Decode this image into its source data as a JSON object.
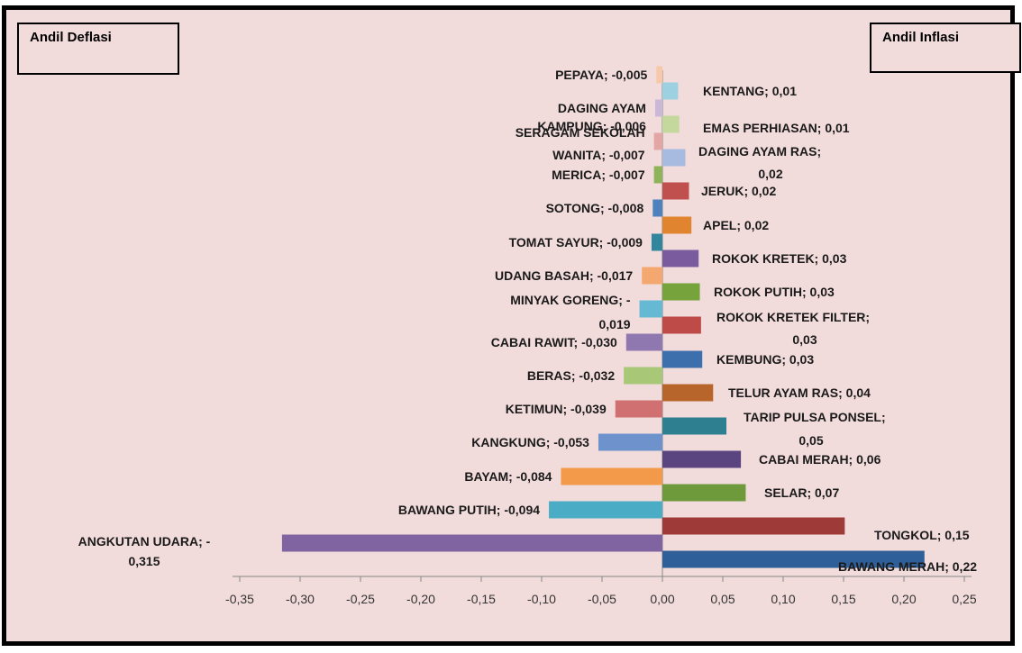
{
  "labels": {
    "deflasi_title": "Andil Deflasi",
    "inflasi_title": "Andil Inflasi"
  },
  "chart_data": {
    "type": "bar",
    "orientation": "horizontal",
    "xlim": [
      -0.35,
      0.25
    ],
    "xticks": [
      "-0,35",
      "-0,30",
      "-0,25",
      "-0,20",
      "-0,15",
      "-0,10",
      "-0,05",
      "0,00",
      "0,05",
      "0,10",
      "0,15",
      "0,20",
      "0,25"
    ],
    "xtick_values": [
      -0.35,
      -0.3,
      -0.25,
      -0.2,
      -0.15,
      -0.1,
      -0.05,
      0.0,
      0.05,
      0.1,
      0.15,
      0.2,
      0.25
    ],
    "deflasi": [
      {
        "label": [
          "PEPAYA; -0,005"
        ],
        "value": -0.005,
        "color": "#f8c9a8"
      },
      {
        "label": [
          "DAGING AYAM",
          "KAMPUNG; -0,006"
        ],
        "value": -0.006,
        "color": "#c9b8d8"
      },
      {
        "label": [
          "SERAGAM SEKOLAH",
          "WANITA; -0,007"
        ],
        "value": -0.007,
        "color": "#e3a6a4"
      },
      {
        "label": [
          "MERICA; -0,007"
        ],
        "value": -0.007,
        "color": "#8fb35a"
      },
      {
        "label": [
          "SOTONG; -0,008"
        ],
        "value": -0.008,
        "color": "#4f81bd"
      },
      {
        "label": [
          "TOMAT SAYUR; -0,009"
        ],
        "value": -0.009,
        "color": "#31859c"
      },
      {
        "label": [
          "UDANG BASAH; -0,017"
        ],
        "value": -0.017,
        "color": "#f4a870"
      },
      {
        "label": [
          "MINYAK GORENG; -",
          "0,019"
        ],
        "value": -0.019,
        "color": "#65b9d3"
      },
      {
        "label": [
          "CABAI RAWIT; -0,030"
        ],
        "value": -0.03,
        "color": "#8f78b0"
      },
      {
        "label": [
          "BERAS; -0,032"
        ],
        "value": -0.032,
        "color": "#a8c878"
      },
      {
        "label": [
          "KETIMUN; -0,039"
        ],
        "value": -0.039,
        "color": "#d07070"
      },
      {
        "label": [
          "KANGKUNG; -0,053"
        ],
        "value": -0.053,
        "color": "#6e93cc"
      },
      {
        "label": [
          "BAYAM; -0,084"
        ],
        "value": -0.084,
        "color": "#f39a4a"
      },
      {
        "label": [
          "BAWANG PUTIH; -0,094"
        ],
        "value": -0.094,
        "color": "#4bacc6"
      },
      {
        "label": [
          "ANGKUTAN UDARA; -",
          "0,315"
        ],
        "value": -0.315,
        "color": "#8064a2"
      }
    ],
    "inflasi": [
      {
        "label": [
          "KENTANG; 0,01"
        ],
        "value": 0.013,
        "color": "#9dd0e0"
      },
      {
        "label": [
          "EMAS PERHIASAN; 0,01"
        ],
        "value": 0.014,
        "color": "#c4d89e"
      },
      {
        "label": [
          "DAGING AYAM RAS;",
          "0,02"
        ],
        "value": 0.019,
        "color": "#a7badf"
      },
      {
        "label": [
          "JERUK; 0,02"
        ],
        "value": 0.022,
        "color": "#c0504d"
      },
      {
        "label": [
          "APEL; 0,02"
        ],
        "value": 0.024,
        "color": "#e0842f"
      },
      {
        "label": [
          "ROKOK KRETEK; 0,03"
        ],
        "value": 0.03,
        "color": "#7a5c9e"
      },
      {
        "label": [
          "ROKOK PUTIH; 0,03"
        ],
        "value": 0.031,
        "color": "#77a33c"
      },
      {
        "label": [
          "ROKOK KRETEK FILTER;",
          "0,03"
        ],
        "value": 0.032,
        "color": "#be4b48"
      },
      {
        "label": [
          "KEMBUNG; 0,03"
        ],
        "value": 0.033,
        "color": "#3d6fad"
      },
      {
        "label": [
          "TELUR AYAM RAS; 0,04"
        ],
        "value": 0.042,
        "color": "#b8652b"
      },
      {
        "label": [
          "TARIP PULSA PONSEL;",
          "0,05"
        ],
        "value": 0.053,
        "color": "#2e7f8f"
      },
      {
        "label": [
          "CABAI MERAH; 0,06"
        ],
        "value": 0.065,
        "color": "#5b4580"
      },
      {
        "label": [
          "SELAR; 0,07"
        ],
        "value": 0.069,
        "color": "#6f9a3b"
      },
      {
        "label": [
          "TONGKOL; 0,15"
        ],
        "value": 0.151,
        "color": "#9e3a38"
      },
      {
        "label": [
          "BAWANG MERAH; 0,22"
        ],
        "value": 0.217,
        "color": "#2e5f98"
      }
    ]
  }
}
